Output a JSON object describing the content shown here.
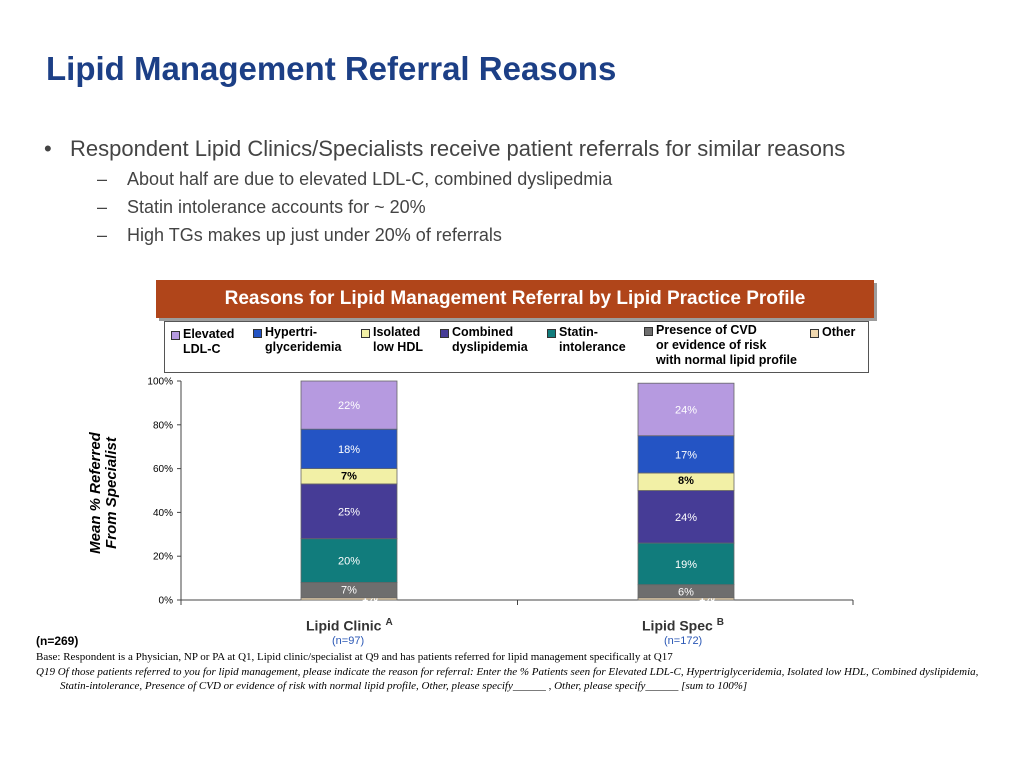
{
  "slide": {
    "title": "Lipid Management Referral Reasons",
    "bullet_marker": "•",
    "sub_marker": "–",
    "bullet": "Respondent Lipid Clinics/Specialists receive patient referrals for similar reasons",
    "sub_bullets": [
      "About half are due to elevated LDL-C, combined dyslipedmia",
      "Statin intolerance accounts for ~ 20%",
      "High TGs makes up just under 20% of referrals"
    ]
  },
  "chart_header": "Reasons for Lipid Management Referral by Lipid Practice Profile",
  "legend": [
    {
      "label": "Elevated\nLDL-C",
      "color": "#b69ae0"
    },
    {
      "label": "Hypertri-\nglyceridemia",
      "color": "#2454c4"
    },
    {
      "label": "Isolated\nlow HDL",
      "color": "#f2f0a6"
    },
    {
      "label": "Combined\ndyslipidemia",
      "color": "#463c96"
    },
    {
      "label": "Statin-\nintolerance",
      "color": "#117c7c"
    },
    {
      "label": "Presence of CVD\nor evidence of risk\nwith normal lipid profile",
      "color": "#6e6e6e"
    },
    {
      "label": "Other",
      "color": "#f1d9b0"
    }
  ],
  "footer": {
    "n_total": "(n=269)",
    "base": "Base: Respondent is a Physician, NP or PA at Q1, Lipid clinic/specialist at Q9 and has patients referred for lipid management specifically at Q17",
    "question": "Q19 Of those patients referred to you for lipid management, please indicate the reason for referral:  Enter the % Patients seen for Elevated LDL-C, Hypertriglyceridemia, Isolated low HDL, Combined dyslipidemia, Statin-intolerance, Presence of CVD or evidence of risk with normal lipid profile, Other, please specify______ , Other, please specify______  [sum to 100%]"
  },
  "chart_data": {
    "type": "bar",
    "stacked": true,
    "title": "Reasons for Lipid Management Referral by Lipid Practice Profile",
    "ylabel": "Mean % Referred\nFrom Specialist",
    "ylim": [
      0,
      100
    ],
    "yticks": [
      "0%",
      "20%",
      "40%",
      "60%",
      "80%",
      "100%"
    ],
    "categories": [
      {
        "label": "Lipid Clinic",
        "sup": "A",
        "n": "(n=97)"
      },
      {
        "label": "Lipid Spec",
        "sup": "B",
        "n": "(n=172)"
      }
    ],
    "series": [
      {
        "name": "Other",
        "color": "#f1d9b0",
        "values": [
          1,
          1
        ]
      },
      {
        "name": "Presence of CVD or evidence of risk with normal lipid profile",
        "color": "#6e6e6e",
        "values": [
          7,
          6
        ]
      },
      {
        "name": "Statin-intolerance",
        "color": "#117c7c",
        "values": [
          20,
          19
        ]
      },
      {
        "name": "Combined dyslipidemia",
        "color": "#463c96",
        "values": [
          25,
          24
        ]
      },
      {
        "name": "Isolated low HDL",
        "color": "#f2f0a6",
        "values": [
          7,
          8
        ]
      },
      {
        "name": "Hypertriglyceridemia",
        "color": "#2454c4",
        "values": [
          18,
          17
        ]
      },
      {
        "name": "Elevated LDL-C",
        "color": "#b69ae0",
        "values": [
          22,
          24
        ]
      }
    ],
    "data_labels": [
      [
        "1%",
        "7%",
        "20%",
        "25%",
        "7%",
        "18%",
        "22%"
      ],
      [
        "1%",
        "6%",
        "19%",
        "24%",
        "8%",
        "17%",
        "24%"
      ]
    ],
    "legend_position": "top",
    "grid": false
  }
}
